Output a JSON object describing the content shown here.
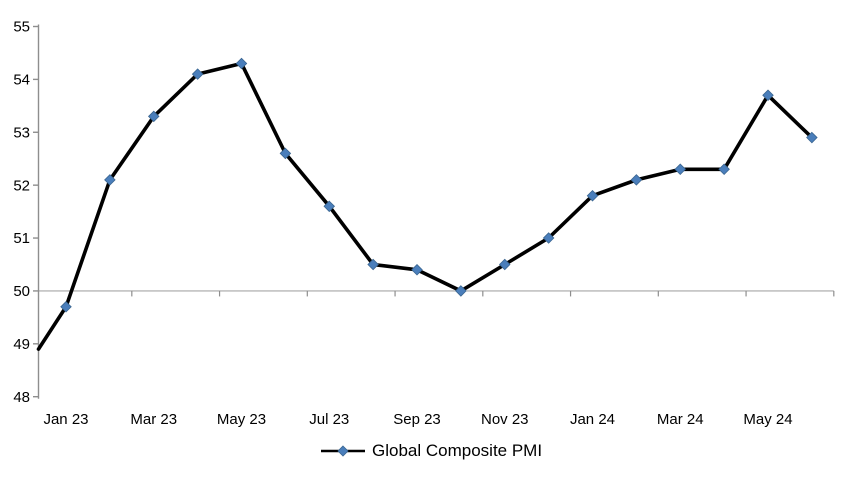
{
  "chart_data": {
    "type": "line",
    "title": "",
    "categories": [
      "Jan 23",
      "Feb 23",
      "Mar 23",
      "Apr 23",
      "May 23",
      "Jun 23",
      "Jul 23",
      "Aug 23",
      "Sep 23",
      "Oct 23",
      "Nov 23",
      "Dec 23",
      "Jan 24",
      "Feb 24",
      "Mar 24",
      "Apr 24",
      "May 24",
      "Jun 24"
    ],
    "series": [
      {
        "name": "Global Composite PMI",
        "values": [
          49.7,
          52.1,
          53.3,
          54.1,
          54.3,
          52.6,
          51.6,
          50.5,
          50.4,
          50.0,
          50.5,
          51.0,
          51.8,
          52.1,
          52.3,
          52.3,
          53.7,
          52.9
        ],
        "line_color": "#000000",
        "marker_shape": "diamond",
        "marker_color": "#4A7EBB",
        "marker_edge_color": "#3A6590"
      }
    ],
    "clipped_start_value_at_left_edge": 48.9,
    "y_axis": {
      "min": 48,
      "max": 55,
      "step": 1,
      "tick_labels": [
        "55",
        "54",
        "53",
        "52",
        "51",
        "50",
        "49",
        "48"
      ]
    },
    "x_axis": {
      "tick_labels_shown": [
        "Jan 23",
        "Mar 23",
        "May 23",
        "Jul 23",
        "Sep 23",
        "Nov 23",
        "Jan 24",
        "Mar 24",
        "May 24"
      ],
      "label_interval_months": 2
    },
    "gridlines": {
      "y_values": [
        50
      ],
      "color": "#A6A6A6"
    },
    "axis_color": "#8E8E8E",
    "legend": {
      "position": "bottom-center",
      "entries": [
        "Global Composite PMI"
      ]
    },
    "background": "#FFFFFF"
  }
}
